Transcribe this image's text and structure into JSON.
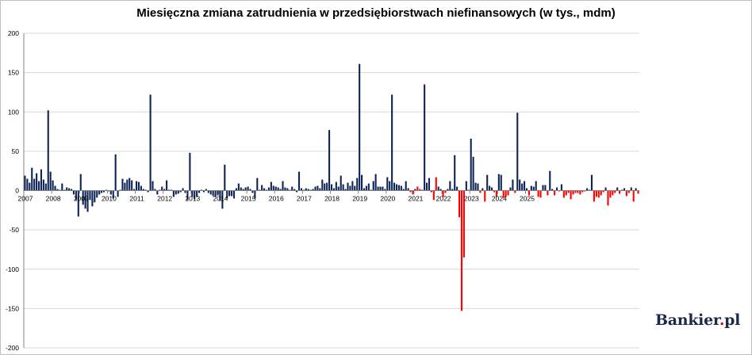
{
  "chart_data": {
    "type": "bar",
    "title": "Miesięczna zmiana zatrudnienia w przedsiębiorstwach niefinansowych (w tys., mdm)",
    "xlabel": "",
    "ylabel": "",
    "ylim": [
      -200,
      200
    ],
    "y_ticks": [
      200,
      150,
      100,
      50,
      0,
      -50,
      -100,
      -150,
      -200
    ],
    "year_labels": [
      "2007",
      "2008",
      "2009",
      "2010",
      "2011",
      "2012",
      "2013",
      "2014",
      "2015",
      "2016",
      "2017",
      "2018",
      "2019",
      "2020",
      "2021",
      "2022",
      "2023",
      "2024",
      "2025"
    ],
    "start": "2007-01",
    "grid": "horizontal",
    "colors": {
      "positive": "#0f2557",
      "negative_recent": "#ff0000",
      "grid": "#d9d9d9",
      "axis": "#808080"
    },
    "red_from": "2020-11",
    "series": [
      {
        "values": [
          19,
          15,
          10,
          29,
          15,
          22,
          12,
          27,
          14,
          9,
          102,
          24,
          13,
          6,
          2,
          1,
          9,
          1,
          4,
          3,
          2,
          -5,
          -12,
          -33,
          21,
          -18,
          -23,
          -27,
          -12,
          -20,
          -15,
          -9,
          -5,
          -3,
          -2,
          1,
          -1,
          -5,
          -10,
          46,
          -8,
          1,
          15,
          10,
          14,
          16,
          13,
          2,
          12,
          11,
          6,
          2,
          1,
          -2,
          122,
          12,
          2,
          -5,
          1,
          5,
          2,
          13,
          1,
          1,
          -8,
          -5,
          -4,
          -2,
          3,
          -3,
          -12,
          48,
          -8,
          -11,
          -8,
          -3,
          1,
          -2,
          2,
          -3,
          -5,
          -7,
          -8,
          -6,
          -13,
          -23,
          33,
          -10,
          -7,
          -7,
          -10,
          3,
          9,
          4,
          2,
          4,
          5,
          2,
          -3,
          -10,
          16,
          1,
          7,
          3,
          1,
          4,
          11,
          6,
          5,
          4,
          2,
          12,
          4,
          3,
          1,
          5,
          2,
          -2,
          24,
          3,
          1,
          3,
          2,
          1,
          2,
          5,
          6,
          3,
          14,
          9,
          10,
          77,
          8,
          3,
          11,
          5,
          19,
          8,
          2,
          10,
          6,
          12,
          6,
          16,
          161,
          20,
          3,
          6,
          9,
          1,
          12,
          21,
          5,
          5,
          5,
          2,
          17,
          12,
          122,
          10,
          8,
          7,
          6,
          2,
          12,
          3,
          -2,
          -5,
          2,
          5,
          2,
          1,
          135,
          10,
          16,
          -2,
          -12,
          17,
          5,
          2,
          -8,
          -3,
          2,
          12,
          2,
          45,
          5,
          -34,
          -153,
          -85,
          12,
          1,
          66,
          43,
          10,
          9,
          -3,
          3,
          -14,
          20,
          6,
          4,
          -2,
          -8,
          21,
          20,
          -9,
          -8,
          -6,
          4,
          14,
          -3,
          99,
          14,
          9,
          12,
          3,
          -6,
          6,
          5,
          12,
          -8,
          -9,
          7,
          7,
          -6,
          25,
          2,
          -6,
          4,
          -1,
          8,
          -9,
          -6,
          -3,
          -11,
          -5,
          -3,
          -3,
          -5,
          -2,
          -1,
          3,
          1,
          20,
          -14,
          -8,
          -9,
          -6,
          -2,
          4,
          -19,
          -9,
          -6,
          -3,
          4,
          -4,
          1,
          3,
          -7,
          -3,
          4,
          -14,
          3,
          -4
        ]
      }
    ]
  },
  "logo": {
    "text": "Bankier",
    "dot": ".",
    "suffix": "pl"
  }
}
